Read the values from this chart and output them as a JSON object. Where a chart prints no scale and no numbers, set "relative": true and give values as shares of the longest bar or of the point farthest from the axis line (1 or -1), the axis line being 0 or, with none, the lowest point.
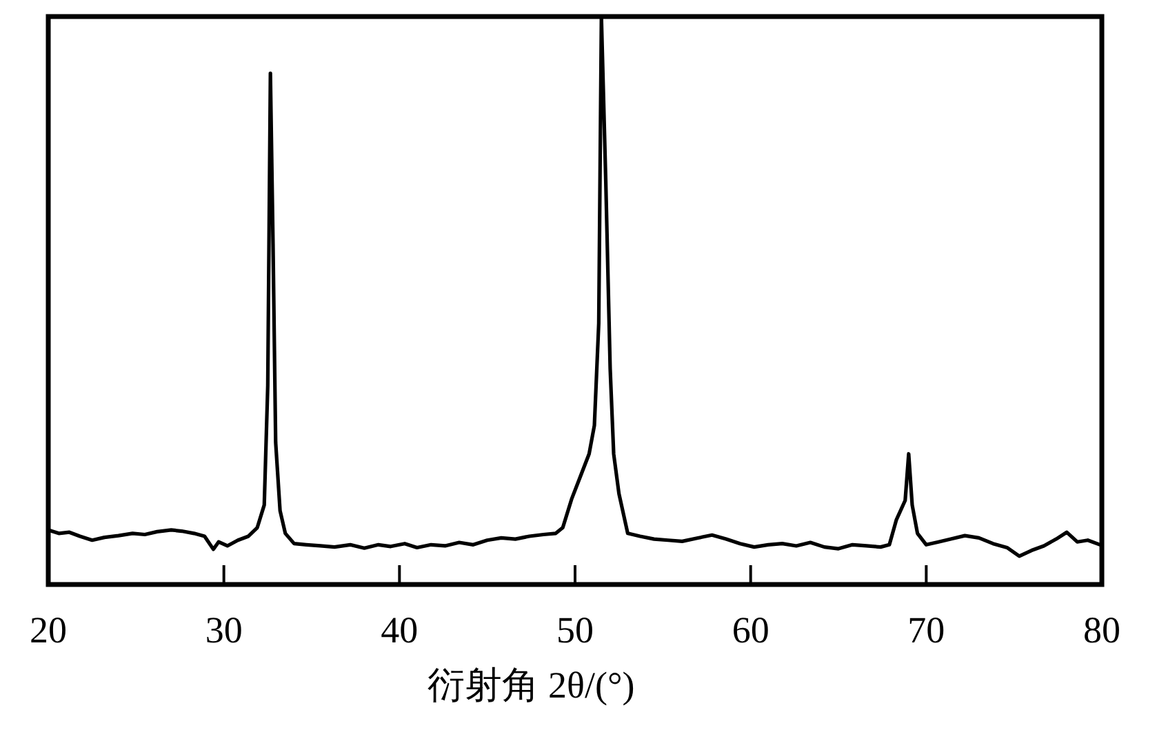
{
  "chart_data": {
    "type": "line",
    "relative": true,
    "xlabel": "衍射角 2θ/(°)",
    "xlim": [
      20,
      80
    ],
    "xticks": [
      20,
      30,
      40,
      50,
      60,
      70,
      80
    ],
    "x": [
      20.1,
      20.6,
      21.2,
      21.8,
      22.5,
      23.2,
      24.0,
      24.8,
      25.5,
      26.2,
      27.0,
      27.6,
      28.3,
      28.9,
      29.4,
      29.7,
      30.2,
      30.8,
      31.4,
      31.9,
      32.3,
      32.5,
      32.65,
      32.8,
      32.95,
      33.2,
      33.5,
      34.0,
      34.7,
      35.5,
      36.3,
      37.2,
      38.0,
      38.8,
      39.5,
      40.3,
      41.0,
      41.8,
      42.6,
      43.4,
      44.2,
      45.0,
      45.8,
      46.6,
      47.4,
      48.2,
      48.9,
      49.3,
      49.8,
      50.3,
      50.8,
      51.1,
      51.35,
      51.5,
      51.75,
      52.0,
      52.2,
      52.5,
      53.0,
      53.7,
      54.5,
      55.3,
      56.1,
      57.0,
      57.8,
      58.6,
      59.4,
      60.2,
      61.0,
      61.8,
      62.6,
      63.4,
      64.2,
      65.0,
      65.8,
      66.6,
      67.4,
      67.9,
      68.3,
      68.8,
      69.0,
      69.2,
      69.5,
      70.0,
      70.7,
      71.4,
      72.2,
      73.0,
      73.8,
      74.6,
      75.3,
      76.0,
      76.7,
      77.4,
      78.0,
      78.6,
      79.2,
      79.9
    ],
    "series": [
      {
        "color": "#000000",
        "values": [
          0.095,
          0.09,
          0.092,
          0.085,
          0.078,
          0.083,
          0.086,
          0.09,
          0.088,
          0.093,
          0.096,
          0.094,
          0.09,
          0.085,
          0.062,
          0.075,
          0.068,
          0.078,
          0.085,
          0.1,
          0.14,
          0.35,
          0.9,
          0.6,
          0.25,
          0.13,
          0.09,
          0.072,
          0.07,
          0.068,
          0.066,
          0.07,
          0.064,
          0.07,
          0.067,
          0.072,
          0.065,
          0.07,
          0.068,
          0.074,
          0.07,
          0.078,
          0.082,
          0.08,
          0.085,
          0.088,
          0.09,
          0.1,
          0.15,
          0.19,
          0.23,
          0.28,
          0.46,
          1.0,
          0.71,
          0.38,
          0.23,
          0.16,
          0.09,
          0.085,
          0.08,
          0.078,
          0.076,
          0.082,
          0.087,
          0.08,
          0.072,
          0.066,
          0.07,
          0.072,
          0.068,
          0.074,
          0.066,
          0.063,
          0.07,
          0.068,
          0.066,
          0.07,
          0.114,
          0.148,
          0.23,
          0.14,
          0.09,
          0.07,
          0.075,
          0.08,
          0.086,
          0.082,
          0.072,
          0.065,
          0.05,
          0.06,
          0.068,
          0.08,
          0.092,
          0.075,
          0.078,
          0.07
        ]
      }
    ]
  }
}
